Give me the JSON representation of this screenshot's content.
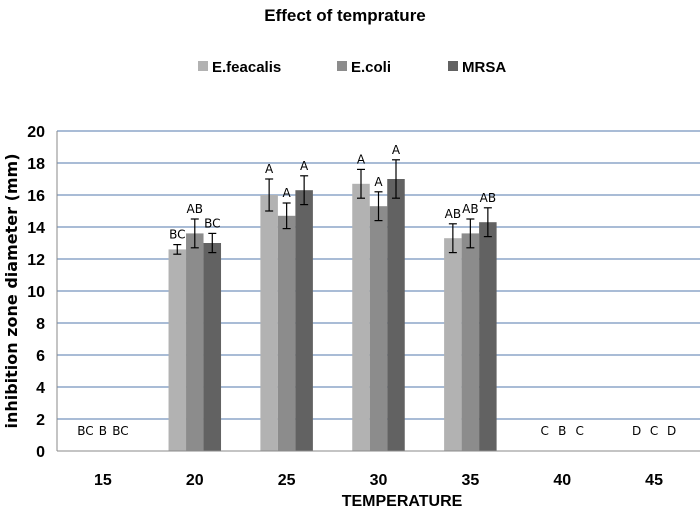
{
  "chart_data": {
    "type": "bar",
    "title": "Effect of temprature",
    "xlabel": "TEMPERATURE",
    "ylabel": "inhibition  zone diameter  (mm)",
    "ylim": [
      0,
      20
    ],
    "yticks": [
      "0",
      "2",
      "4",
      "6",
      "8",
      "10",
      "12",
      "14",
      "16",
      "18",
      "20"
    ],
    "grid": true,
    "legend_position": "top-center",
    "categories": [
      "15",
      "20",
      "25",
      "30",
      "35",
      "40",
      "45"
    ],
    "series": [
      {
        "name": "E.feacalis",
        "color": "#b2b2b2",
        "values": [
          0,
          12.6,
          16.0,
          16.7,
          13.3,
          0,
          0
        ],
        "errors": [
          0,
          0.3,
          1.0,
          0.9,
          0.9,
          0,
          0
        ],
        "significance": [
          "BC",
          "BC",
          "A",
          "A",
          "AB",
          "C",
          "D"
        ]
      },
      {
        "name": "E.coli",
        "color": "#8c8c8c",
        "values": [
          0,
          13.6,
          14.7,
          15.3,
          13.6,
          0,
          0
        ],
        "errors": [
          0,
          0.9,
          0.8,
          0.9,
          0.9,
          0,
          0
        ],
        "significance": [
          "B",
          "AB",
          "A",
          "A",
          "AB",
          "B",
          "C"
        ]
      },
      {
        "name": "MRSA",
        "color": "#626262",
        "values": [
          0,
          13.0,
          16.3,
          17.0,
          14.3,
          0,
          0
        ],
        "errors": [
          0,
          0.6,
          0.9,
          1.2,
          0.9,
          0,
          0
        ],
        "significance": [
          "BC",
          "BC",
          "A",
          "A",
          "AB",
          "C",
          "D"
        ]
      }
    ]
  }
}
